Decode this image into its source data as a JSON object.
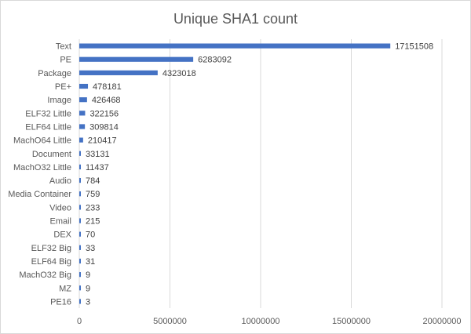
{
  "chart_data": {
    "type": "bar",
    "orientation": "horizontal",
    "title": "Unique SHA1 count",
    "categories": [
      "Text",
      "PE",
      "Package",
      "PE+",
      "Image",
      "ELF32 Little",
      "ELF64 Little",
      "MachO64 Little",
      "Document",
      "MachO32 Little",
      "Audio",
      "Media Container",
      "Video",
      "Email",
      "DEX",
      "ELF32 Big",
      "ELF64 Big",
      "MachO32 Big",
      "MZ",
      "PE16"
    ],
    "values": [
      17151508,
      6283092,
      4323018,
      478181,
      426468,
      322156,
      309814,
      210417,
      33131,
      11437,
      784,
      759,
      233,
      215,
      70,
      33,
      31,
      9,
      9,
      3
    ],
    "value_labels": [
      "17151508",
      "6283092",
      "4323018",
      "478181",
      "426468",
      "322156",
      "309814",
      "210417",
      "33131",
      "11437",
      "784",
      "759",
      "233",
      "215",
      "70",
      "33",
      "31",
      "9",
      "9",
      "3"
    ],
    "xlim": [
      0,
      20000000
    ],
    "xticks": [
      "0",
      "5000000",
      "10000000",
      "15000000",
      "20000000"
    ],
    "xtick_values": [
      0,
      5000000,
      10000000,
      15000000,
      20000000
    ],
    "grid": true,
    "legend": false,
    "bar_color": "#4472c4",
    "grid_color": "#d9d9d9"
  }
}
